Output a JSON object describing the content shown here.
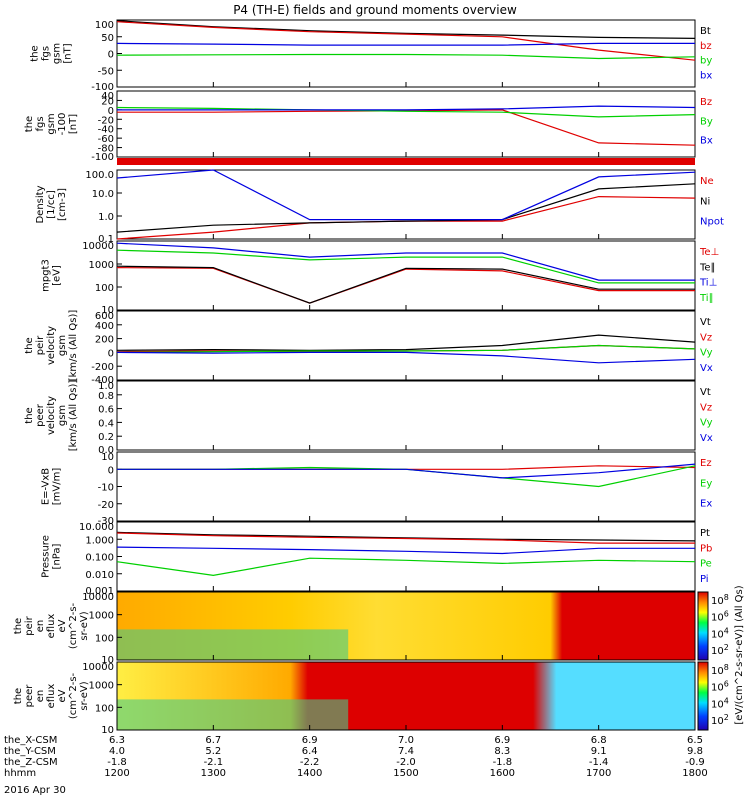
{
  "title": "P4 (TH-E) fields and ground moments overview",
  "colors": {
    "black": "#000000",
    "red": "#e00000",
    "green": "#00d000",
    "blue": "#0000e0"
  },
  "panels": [
    {
      "id": "fgs",
      "ylabel": [
        "the",
        "fgs",
        "gsm",
        "[nT]"
      ],
      "yticks": [
        "100",
        "50",
        "0",
        "-50",
        "-100"
      ],
      "legend": [
        {
          "t": "Bt",
          "c": "black"
        },
        {
          "t": "bz",
          "c": "red"
        },
        {
          "t": "by",
          "c": "green"
        },
        {
          "t": "bx",
          "c": "blue"
        }
      ]
    },
    {
      "id": "fgs2",
      "ylabel": [
        "the",
        "fgs",
        "gsm",
        "-100",
        "[nT]"
      ],
      "yticks": [
        "40",
        "20",
        "0",
        "-20",
        "-40",
        "-60",
        "-80",
        "-100"
      ],
      "legend": [
        {
          "t": "Bz",
          "c": "red"
        },
        {
          "t": "By",
          "c": "green"
        },
        {
          "t": "Bx",
          "c": "blue"
        }
      ]
    },
    {
      "id": "density",
      "ylabel": [
        "Density",
        "[1/cc]",
        "[cm-3]"
      ],
      "yticks": [
        "100.0",
        "10.0",
        "1.0",
        "0.1"
      ],
      "legend": [
        {
          "t": "Ne",
          "c": "red"
        },
        {
          "t": "Ni",
          "c": "black"
        },
        {
          "t": "Npot",
          "c": "blue"
        }
      ]
    },
    {
      "id": "temp",
      "ylabel": [
        "mpgt3",
        "[eV]"
      ],
      "yticks": [
        "10000",
        "1000",
        "100",
        "10"
      ],
      "legend": [
        {
          "t": "Te⊥",
          "c": "red"
        },
        {
          "t": "Te∥",
          "c": "black"
        },
        {
          "t": "Ti⊥",
          "c": "blue"
        },
        {
          "t": "Ti∥",
          "c": "green"
        }
      ]
    },
    {
      "id": "velA",
      "ylabel": [
        "the",
        "peir",
        "velocity",
        "gsm",
        "[km/s (All Qs)]"
      ],
      "yticks": [
        "600",
        "400",
        "200",
        "0",
        "-200",
        "-400"
      ],
      "legend": [
        {
          "t": "Vt",
          "c": "black"
        },
        {
          "t": "Vz",
          "c": "red"
        },
        {
          "t": "Vy",
          "c": "green"
        },
        {
          "t": "Vx",
          "c": "blue"
        }
      ]
    },
    {
      "id": "velB",
      "ylabel": [
        "the",
        "peer",
        "velocity",
        "gsm",
        "[km/s (All Qs)]"
      ],
      "yticks": [
        "1.0",
        "0.8",
        "0.6",
        "0.4",
        "0.2",
        "0.0"
      ],
      "legend": [
        {
          "t": "Vt",
          "c": "black"
        },
        {
          "t": "Vz",
          "c": "red"
        },
        {
          "t": "Vy",
          "c": "green"
        },
        {
          "t": "Vx",
          "c": "blue"
        }
      ]
    },
    {
      "id": "efield",
      "ylabel": [
        "E=-VxB",
        "[mV/m]"
      ],
      "yticks": [
        "10",
        "0",
        "-10",
        "-20",
        "-30"
      ],
      "legend": [
        {
          "t": "Ez",
          "c": "red"
        },
        {
          "t": "Ey",
          "c": "green"
        },
        {
          "t": "Ex",
          "c": "blue"
        }
      ]
    },
    {
      "id": "pressure",
      "ylabel": [
        "Pressure",
        "[nPa]"
      ],
      "yticks": [
        "10.000",
        "1.000",
        "0.100",
        "0.010",
        "0.001"
      ],
      "legend": [
        {
          "t": "Pt",
          "c": "black"
        },
        {
          "t": "Pb",
          "c": "red"
        },
        {
          "t": "Pe",
          "c": "green"
        },
        {
          "t": "Pi",
          "c": "blue"
        }
      ]
    },
    {
      "id": "specI",
      "ylabel": [
        "the",
        "peir",
        "en",
        "eflux",
        "eV",
        "(cm^2-s-",
        "sr-eV)"
      ],
      "yticks": [
        "10000",
        "1000",
        "100",
        "10"
      ],
      "colorbar_ticks": [
        "10^8",
        "10^6",
        "10^4",
        "10^2"
      ]
    },
    {
      "id": "specE",
      "ylabel": [
        "the",
        "peer",
        "en",
        "eflux",
        "eV",
        "(cm^2-s-",
        "sr-eV)"
      ],
      "yticks": [
        "10000",
        "1000",
        "100",
        "10"
      ],
      "colorbar_ticks": [
        "10^8",
        "10^6",
        "10^4",
        "10^2"
      ]
    }
  ],
  "colorbar_label": "[eV/(cm^2-s-sr-eV)] (All Qs)",
  "x_rows": [
    {
      "label": "the_X-CSM",
      "values": [
        "6.3",
        "6.7",
        "6.9",
        "7.0",
        "6.9",
        "6.8",
        "6.5"
      ]
    },
    {
      "label": "the_Y-CSM",
      "values": [
        "4.0",
        "5.2",
        "6.4",
        "7.4",
        "8.3",
        "9.1",
        "9.8"
      ]
    },
    {
      "label": "the_Z-CSM",
      "values": [
        "-1.8",
        "-2.1",
        "-2.2",
        "-2.0",
        "-1.8",
        "-1.4",
        "-0.9"
      ]
    },
    {
      "label": "hhmm",
      "values": [
        "1200",
        "1300",
        "1400",
        "1500",
        "1600",
        "1700",
        "1800"
      ]
    }
  ],
  "date": "2016 Apr 30",
  "chart_data": {
    "type": "line",
    "title": "P4 (TH-E) fields and ground moments overview",
    "x_axis": {
      "label": "hhmm",
      "ticks": [
        "1200",
        "1300",
        "1400",
        "1500",
        "1600",
        "1700",
        "1800"
      ],
      "range": [
        "1200",
        "1800"
      ]
    },
    "panels": [
      {
        "name": "fgs gsm [nT]",
        "ylim": [
          -100,
          100
        ],
        "series": [
          {
            "name": "Bt",
            "color": "black",
            "x": [
              "1200",
              "1300",
              "1400",
              "1500",
              "1600",
              "1700",
              "1800"
            ],
            "values": [
              98,
              80,
              68,
              60,
              55,
              48,
              45
            ]
          },
          {
            "name": "bz",
            "color": "red",
            "x": [
              "1200",
              "1300",
              "1400",
              "1500",
              "1600",
              "1700",
              "1800"
            ],
            "values": [
              95,
              78,
              65,
              58,
              50,
              10,
              -20
            ]
          },
          {
            "name": "by",
            "color": "green",
            "x": [
              "1200",
              "1300",
              "1400",
              "1500",
              "1600",
              "1700",
              "1800"
            ],
            "values": [
              -5,
              -4,
              -3,
              -3,
              -5,
              -15,
              -10
            ]
          },
          {
            "name": "bx",
            "color": "blue",
            "x": [
              "1200",
              "1300",
              "1400",
              "1500",
              "1600",
              "1700",
              "1800"
            ],
            "values": [
              30,
              28,
              25,
              25,
              25,
              30,
              30
            ]
          }
        ]
      },
      {
        "name": "fgs gsm -100 [nT]",
        "ylim": [
          -100,
          40
        ],
        "series": [
          {
            "name": "Bz",
            "color": "red",
            "x": [
              "1200",
              "1300",
              "1400",
              "1500",
              "1600",
              "1700",
              "1800"
            ],
            "values": [
              -5,
              -5,
              -3,
              -2,
              0,
              -70,
              -75
            ]
          },
          {
            "name": "By",
            "color": "green",
            "x": [
              "1200",
              "1300",
              "1400",
              "1500",
              "1600",
              "1700",
              "1800"
            ],
            "values": [
              5,
              3,
              0,
              -3,
              -5,
              -15,
              -10
            ]
          },
          {
            "name": "Bx",
            "color": "blue",
            "x": [
              "1200",
              "1300",
              "1400",
              "1500",
              "1600",
              "1700",
              "1800"
            ],
            "values": [
              0,
              0,
              0,
              0,
              2,
              8,
              5
            ]
          }
        ]
      },
      {
        "name": "Density [1/cc]",
        "log": true,
        "ylim": [
          0.1,
          100
        ],
        "series": [
          {
            "name": "Ne",
            "color": "red",
            "x": [
              "1200",
              "1300",
              "1400",
              "1500",
              "1600",
              "1700",
              "1800"
            ],
            "values": [
              0.1,
              0.2,
              0.5,
              0.6,
              0.6,
              7,
              6
            ]
          },
          {
            "name": "Ni",
            "color": "black",
            "x": [
              "1200",
              "1300",
              "1400",
              "1500",
              "1600",
              "1700",
              "1800"
            ],
            "values": [
              0.2,
              0.4,
              0.5,
              0.6,
              0.7,
              15,
              25
            ]
          },
          {
            "name": "Npot",
            "color": "blue",
            "x": [
              "1200",
              "1300",
              "1400",
              "1500",
              "1600",
              "1700",
              "1800"
            ],
            "values": [
              45,
              100,
              0.7,
              0.7,
              0.7,
              50,
              80
            ]
          }
        ]
      },
      {
        "name": "mpgt3 [eV]",
        "log": true,
        "ylim": [
          10,
          10000
        ],
        "series": [
          {
            "name": "Te⊥",
            "color": "red",
            "x": [
              "1200",
              "1300",
              "1400",
              "1500",
              "1600",
              "1700",
              "1800"
            ],
            "values": [
              700,
              650,
              20,
              600,
              500,
              70,
              70
            ]
          },
          {
            "name": "Te∥",
            "color": "black",
            "x": [
              "1200",
              "1300",
              "1400",
              "1500",
              "1600",
              "1700",
              "1800"
            ],
            "values": [
              800,
              700,
              20,
              650,
              600,
              80,
              80
            ]
          },
          {
            "name": "Ti⊥",
            "color": "blue",
            "x": [
              "1200",
              "1300",
              "1400",
              "1500",
              "1600",
              "1700",
              "1800"
            ],
            "values": [
              8000,
              5000,
              2000,
              3000,
              3000,
              200,
              200
            ]
          },
          {
            "name": "Ti∥",
            "color": "green",
            "x": [
              "1200",
              "1300",
              "1400",
              "1500",
              "1600",
              "1700",
              "1800"
            ],
            "values": [
              4000,
              3000,
              1500,
              2000,
              2000,
              150,
              150
            ]
          }
        ]
      },
      {
        "name": "peir velocity gsm [km/s]",
        "ylim": [
          -400,
          600
        ],
        "series": [
          {
            "name": "Vt",
            "color": "black",
            "x": [
              "1200",
              "1300",
              "1400",
              "1500",
              "1600",
              "1700",
              "1800"
            ],
            "values": [
              30,
              40,
              30,
              40,
              100,
              250,
              150
            ]
          },
          {
            "name": "Vz",
            "color": "red",
            "x": [
              "1200",
              "1300",
              "1400",
              "1500",
              "1600",
              "1700",
              "1800"
            ],
            "values": [
              10,
              20,
              10,
              20,
              30,
              100,
              50
            ]
          },
          {
            "name": "Vy",
            "color": "green",
            "x": [
              "1200",
              "1300",
              "1400",
              "1500",
              "1600",
              "1700",
              "1800"
            ],
            "values": [
              0,
              10,
              20,
              20,
              30,
              100,
              50
            ]
          },
          {
            "name": "Vx",
            "color": "blue",
            "x": [
              "1200",
              "1300",
              "1400",
              "1500",
              "1600",
              "1700",
              "1800"
            ],
            "values": [
              0,
              -10,
              0,
              0,
              -50,
              -150,
              -100
            ]
          }
        ]
      },
      {
        "name": "peer velocity gsm [km/s]",
        "ylim": [
          0,
          1
        ],
        "series": []
      },
      {
        "name": "E=-VxB [mV/m]",
        "ylim": [
          -30,
          10
        ],
        "series": [
          {
            "name": "Ez",
            "color": "red",
            "x": [
              "1200",
              "1300",
              "1400",
              "1500",
              "1600",
              "1700",
              "1800"
            ],
            "values": [
              0,
              0,
              0,
              0,
              0,
              2,
              1
            ]
          },
          {
            "name": "Ey",
            "color": "green",
            "x": [
              "1200",
              "1300",
              "1400",
              "1500",
              "1600",
              "1700",
              "1800"
            ],
            "values": [
              0,
              0,
              1,
              0,
              -5,
              -10,
              2
            ]
          },
          {
            "name": "Ex",
            "color": "blue",
            "x": [
              "1200",
              "1300",
              "1400",
              "1500",
              "1600",
              "1700",
              "1800"
            ],
            "values": [
              0,
              0,
              0,
              0,
              -5,
              -2,
              3
            ]
          }
        ]
      },
      {
        "name": "Pressure [nPa]",
        "log": true,
        "ylim": [
          0.001,
          10
        ],
        "series": [
          {
            "name": "Pt",
            "color": "black",
            "x": [
              "1200",
              "1300",
              "1400",
              "1500",
              "1600",
              "1700",
              "1800"
            ],
            "values": [
              2.5,
              1.8,
              1.5,
              1.2,
              1.0,
              0.9,
              0.8
            ]
          },
          {
            "name": "Pb",
            "color": "red",
            "x": [
              "1200",
              "1300",
              "1400",
              "1500",
              "1600",
              "1700",
              "1800"
            ],
            "values": [
              2.3,
              1.6,
              1.3,
              1.1,
              0.9,
              0.6,
              0.6
            ]
          },
          {
            "name": "Pe",
            "color": "green",
            "x": [
              "1200",
              "1300",
              "1400",
              "1500",
              "1600",
              "1700",
              "1800"
            ],
            "values": [
              0.05,
              0.008,
              0.08,
              0.06,
              0.04,
              0.06,
              0.05
            ]
          },
          {
            "name": "Pi",
            "color": "blue",
            "x": [
              "1200",
              "1300",
              "1400",
              "1500",
              "1600",
              "1700",
              "1800"
            ],
            "values": [
              0.35,
              0.3,
              0.25,
              0.2,
              0.15,
              0.3,
              0.3
            ]
          }
        ]
      }
    ]
  }
}
